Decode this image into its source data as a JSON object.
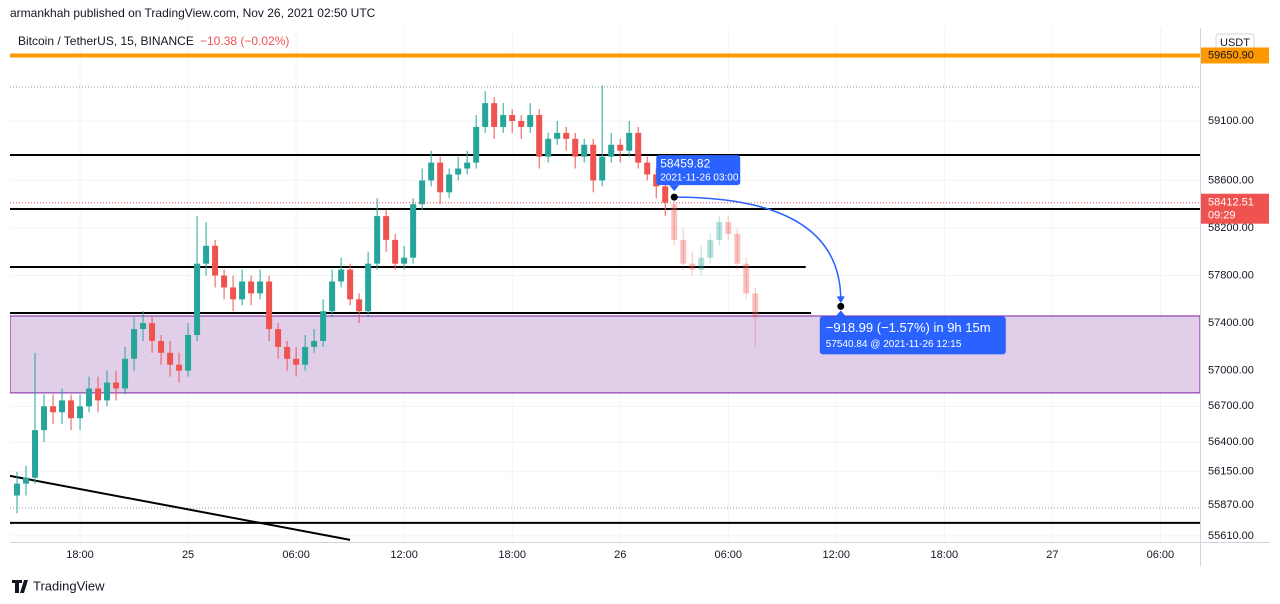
{
  "chart_data": {
    "type": "candlestick",
    "header": "armankhah published on TradingView.com, Nov 26, 2021 02:50 UTC",
    "symbol": "Bitcoin / TetherUS, 15, BINANCE",
    "change": "−10.38 (−0.02%)",
    "currency": "USDT",
    "footer": "TradingView",
    "xlim": [
      14.11,
      80.2
    ],
    "ylim": [
      55559,
      59882
    ],
    "xticks": [
      {
        "value": 18,
        "label": "18:00"
      },
      {
        "value": 24,
        "label": "25"
      },
      {
        "value": 30,
        "label": "06:00"
      },
      {
        "value": 36,
        "label": "12:00"
      },
      {
        "value": 42,
        "label": "18:00"
      },
      {
        "value": 48,
        "label": "26"
      },
      {
        "value": 54,
        "label": "06:00"
      },
      {
        "value": 60,
        "label": "12:00"
      },
      {
        "value": 66,
        "label": "18:00"
      },
      {
        "value": 72,
        "label": "27"
      },
      {
        "value": 78,
        "label": "06:00"
      }
    ],
    "yticks": [
      {
        "value": 59100,
        "label": "59100.00"
      },
      {
        "value": 58600,
        "label": "58600.00"
      },
      {
        "value": 58200,
        "label": "58200.00"
      },
      {
        "value": 57800,
        "label": "57800.00"
      },
      {
        "value": 57400,
        "label": "57400.00"
      },
      {
        "value": 57000,
        "label": "57000.00"
      },
      {
        "value": 56700,
        "label": "56700.00"
      },
      {
        "value": 56400,
        "label": "56400.00"
      },
      {
        "value": 56150,
        "label": "56150.00"
      },
      {
        "value": 55870,
        "label": "55870.00"
      },
      {
        "value": 55610,
        "label": "55610.00"
      }
    ],
    "grid": true,
    "up_color": "#26a69a",
    "down_color": "#ef5350",
    "x": [
      14.5,
      15,
      15.5,
      16,
      16.5,
      17,
      17.5,
      18,
      18.5,
      19,
      19.5,
      20,
      20.5,
      21,
      21.5,
      22,
      22.5,
      23,
      23.5,
      24,
      24.5,
      25,
      25.5,
      26,
      26.5,
      27,
      27.5,
      28,
      28.5,
      29,
      29.5,
      30,
      30.5,
      31,
      31.5,
      32,
      32.5,
      33,
      33.5,
      34,
      34.5,
      35,
      35.5,
      36,
      36.5,
      37,
      37.5,
      38,
      38.5,
      39,
      39.5,
      40,
      40.5,
      41,
      41.5,
      42,
      42.5,
      43,
      43.5,
      44,
      44.5,
      45,
      45.5,
      46,
      46.5,
      47,
      47.5,
      48,
      48.5,
      49,
      49.5,
      50,
      50.5
    ],
    "candles": [
      [
        55950,
        56150,
        55800,
        56050
      ],
      [
        56050,
        56200,
        55950,
        56100
      ],
      [
        56100,
        57150,
        56050,
        56500
      ],
      [
        56500,
        56800,
        56400,
        56700
      ],
      [
        56700,
        56800,
        56550,
        56650
      ],
      [
        56650,
        56850,
        56550,
        56750
      ],
      [
        56750,
        56800,
        56500,
        56600
      ],
      [
        56600,
        56800,
        56500,
        56700
      ],
      [
        56700,
        56950,
        56650,
        56850
      ],
      [
        56850,
        56950,
        56650,
        56750
      ],
      [
        56750,
        57000,
        56700,
        56900
      ],
      [
        56900,
        57000,
        56750,
        56850
      ],
      [
        56850,
        57200,
        56800,
        57100
      ],
      [
        57100,
        57450,
        57000,
        57350
      ],
      [
        57350,
        57500,
        57250,
        57400
      ],
      [
        57400,
        57450,
        57150,
        57250
      ],
      [
        57250,
        57300,
        57050,
        57150
      ],
      [
        57150,
        57250,
        56950,
        57050
      ],
      [
        57050,
        57150,
        56900,
        57000
      ],
      [
        57000,
        57400,
        56950,
        57300
      ],
      [
        57300,
        58300,
        57250,
        57900
      ],
      [
        57900,
        58250,
        57800,
        58050
      ],
      [
        58050,
        58100,
        57700,
        57800
      ],
      [
        57800,
        57850,
        57600,
        57700
      ],
      [
        57700,
        57800,
        57500,
        57600
      ],
      [
        57600,
        57850,
        57550,
        57750
      ],
      [
        57750,
        57800,
        57550,
        57650
      ],
      [
        57650,
        57850,
        57600,
        57750
      ],
      [
        57750,
        57800,
        57250,
        57350
      ],
      [
        57350,
        57400,
        57100,
        57200
      ],
      [
        57200,
        57250,
        57000,
        57100
      ],
      [
        57100,
        57200,
        56950,
        57050
      ],
      [
        57050,
        57300,
        57000,
        57200
      ],
      [
        57200,
        57350,
        57150,
        57250
      ],
      [
        57250,
        57600,
        57200,
        57500
      ],
      [
        57500,
        57850,
        57450,
        57750
      ],
      [
        57750,
        57950,
        57700,
        57850
      ],
      [
        57850,
        57900,
        57550,
        57600
      ],
      [
        57600,
        57650,
        57400,
        57500
      ],
      [
        57500,
        58000,
        57450,
        57900
      ],
      [
        57900,
        58450,
        57850,
        58300
      ],
      [
        58300,
        58350,
        58000,
        58100
      ],
      [
        58100,
        58150,
        57850,
        57900
      ],
      [
        57900,
        58050,
        57850,
        57950
      ],
      [
        57950,
        58450,
        57900,
        58400
      ],
      [
        58400,
        58700,
        58350,
        58600
      ],
      [
        58600,
        58850,
        58550,
        58750
      ],
      [
        58750,
        58800,
        58400,
        58500
      ],
      [
        58500,
        58700,
        58450,
        58650
      ],
      [
        58650,
        58800,
        58600,
        58700
      ],
      [
        58700,
        58850,
        58650,
        58750
      ],
      [
        58750,
        59150,
        58700,
        59050
      ],
      [
        59050,
        59350,
        59000,
        59250
      ],
      [
        59250,
        59300,
        58950,
        59050
      ],
      [
        59050,
        59250,
        59000,
        59150
      ],
      [
        59150,
        59200,
        59000,
        59100
      ],
      [
        59100,
        59150,
        58950,
        59050
      ],
      [
        59050,
        59250,
        59000,
        59150
      ],
      [
        59150,
        59200,
        58700,
        58800
      ],
      [
        58800,
        59000,
        58750,
        58950
      ],
      [
        58950,
        59100,
        58900,
        59000
      ],
      [
        59000,
        59050,
        58850,
        58950
      ],
      [
        58950,
        59000,
        58700,
        58800
      ],
      [
        58800,
        58950,
        58750,
        58900
      ],
      [
        58900,
        58950,
        58500,
        58600
      ],
      [
        58600,
        59400,
        58550,
        58800
      ],
      [
        58800,
        59000,
        58750,
        58900
      ],
      [
        58900,
        58950,
        58750,
        58850
      ],
      [
        58850,
        59100,
        58800,
        59000
      ],
      [
        59000,
        59050,
        58700,
        58750
      ],
      [
        58750,
        58800,
        58600,
        58650
      ],
      [
        58650,
        58700,
        58450,
        58550
      ],
      [
        58550,
        58600,
        58300,
        58412.51
      ]
    ],
    "projection_x": [
      51,
      51.5,
      52,
      52.5,
      53,
      53.5,
      54,
      54.5,
      55,
      55.5
    ],
    "projection": [
      [
        58400,
        58450,
        58050,
        58100
      ],
      [
        58100,
        58200,
        57850,
        57900
      ],
      [
        57900,
        58000,
        57800,
        57850
      ],
      [
        57850,
        58050,
        57800,
        57950
      ],
      [
        57950,
        58150,
        57900,
        58100
      ],
      [
        58100,
        58300,
        58050,
        58250
      ],
      [
        58250,
        58300,
        58100,
        58150
      ],
      [
        58150,
        58200,
        57850,
        57900
      ],
      [
        57900,
        57950,
        57600,
        57650
      ],
      [
        57650,
        57700,
        57200,
        57450
      ]
    ],
    "last_price": 58412.51,
    "countdown": "09:29",
    "orange_level": {
      "value": 59650.9,
      "label": "59650.90"
    },
    "levels": [
      {
        "price": 58814,
        "x_end": 80.2
      },
      {
        "price": 58360,
        "x_end": 80.2
      },
      {
        "price": 57872,
        "x_end": 58.3
      },
      {
        "price": 57485,
        "x_end": 58.6
      },
      {
        "price": 55720,
        "x_end": 80.2
      }
    ],
    "dotted_levels": [
      59386,
      55845
    ],
    "zone": [
      57460,
      56813
    ],
    "trendline": {
      "x": [
        14.11,
        33
      ],
      "y": [
        56115,
        55577
      ]
    },
    "measure": {
      "start_x": 51,
      "start_price": 58459.82,
      "start_label": "2021-11-26 03:00",
      "end_x": 60.25,
      "end_price": 57540.84,
      "change_label": "−918.99 (−1.57%) in 9h 15m",
      "end_label": "57540.84 @ 2021-11-26  12:15"
    }
  }
}
